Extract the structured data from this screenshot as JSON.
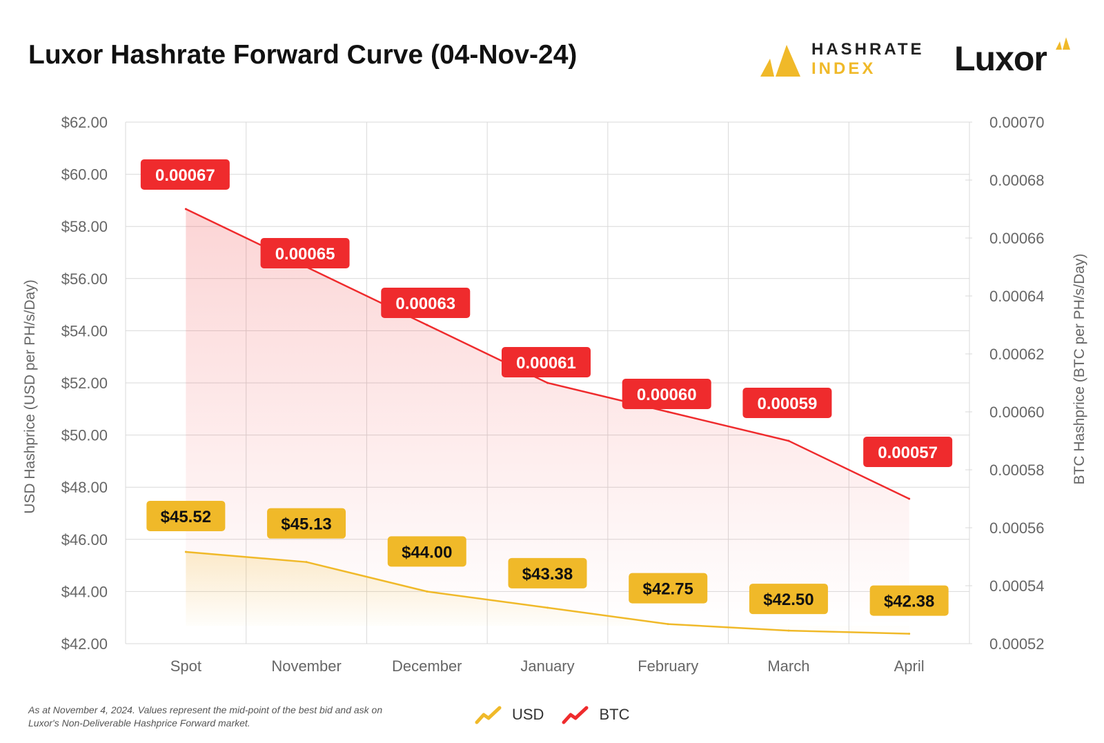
{
  "header": {
    "title": "Luxor Hashrate Forward Curve (04-Nov-24)",
    "hashrate_index_line1": "HASHRATE",
    "hashrate_index_line2": "INDEX",
    "luxor_logo": "Luxor"
  },
  "colors": {
    "usd": "#f0b929",
    "btc": "#ef2b2d",
    "grid": "#d9d9d9",
    "axis_text": "#666666"
  },
  "chart_data": {
    "type": "line",
    "categories": [
      "Spot",
      "November",
      "December",
      "January",
      "February",
      "March",
      "April"
    ],
    "series": [
      {
        "name": "USD",
        "axis": "left",
        "values": [
          45.52,
          45.13,
          44.0,
          43.38,
          42.75,
          42.5,
          42.38
        ],
        "labels": [
          "$45.52",
          "$45.13",
          "$44.00",
          "$43.38",
          "$42.75",
          "$42.50",
          "$42.38"
        ]
      },
      {
        "name": "BTC",
        "axis": "right",
        "values": [
          0.00067,
          0.00065,
          0.00063,
          0.00061,
          0.0006,
          0.00059,
          0.00057
        ],
        "labels": [
          "0.00067",
          "0.00065",
          "0.00063",
          "0.00061",
          "0.00060",
          "0.00059",
          "0.00057"
        ]
      }
    ],
    "ylabel_left": "USD Hashprice (USD per PH/s/Day)",
    "ylabel_right": "BTC Hashprice (BTC per PH/s/Day)",
    "ylim_left": [
      42,
      62
    ],
    "ylim_right": [
      0.00052,
      0.0007
    ],
    "yticks_left": [
      "$62.00",
      "$60.00",
      "$58.00",
      "$56.00",
      "$54.00",
      "$52.00",
      "$50.00",
      "$48.00",
      "$46.00",
      "$44.00",
      "$42.00"
    ],
    "yticks_right": [
      "0.00070",
      "0.00068",
      "0.00066",
      "0.00064",
      "0.00062",
      "0.00060",
      "0.00058",
      "0.00056",
      "0.00054",
      "0.00052"
    ],
    "grid": true,
    "legend": "bottom-center"
  },
  "footnote": "As at November 4, 2024. Values represent the mid-point of the best bid and ask on Luxor's Non-Deliverable Hashprice Forward market.",
  "legend_items": [
    {
      "label": "USD",
      "icon": "trend-up-icon"
    },
    {
      "label": "BTC",
      "icon": "trend-up-icon"
    }
  ]
}
